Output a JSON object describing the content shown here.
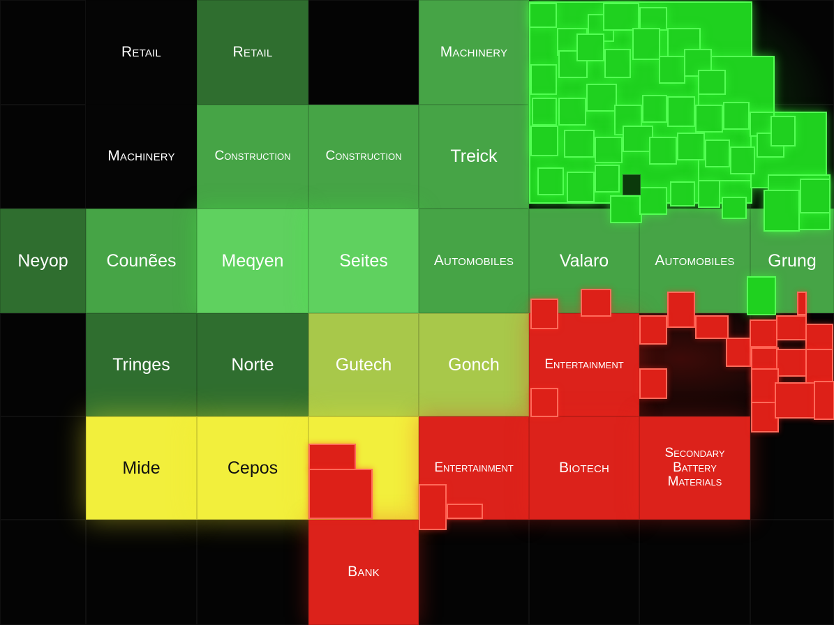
{
  "chart_data": {
    "type": "heatmap",
    "title": "",
    "columns": 8,
    "rows": 6,
    "colors": {
      "dark_green": "#2f6e2f",
      "mid_green": "#46a446",
      "light_green": "#5fd15f",
      "lime": "#a8c84a",
      "yellow": "#f2ef3c",
      "red": "#dc221b",
      "bright_green": "#2ee82e",
      "black": "#050505"
    },
    "cells": [
      {
        "label": "Retail",
        "col": 1,
        "row": 0,
        "color": "black",
        "case": "caps",
        "text_color": "#ffffff"
      },
      {
        "label": "Retail",
        "col": 2,
        "row": 0,
        "color": "dark_green",
        "case": "caps",
        "text_color": "#ffffff"
      },
      {
        "label": "Machinery",
        "col": 4,
        "row": 0,
        "color": "mid_green",
        "case": "caps",
        "text_color": "#ffffff"
      },
      {
        "label": "Machinery",
        "col": 1,
        "row": 1,
        "color": "black",
        "case": "caps",
        "text_color": "#ffffff"
      },
      {
        "label": "Construction",
        "col": 2,
        "row": 1,
        "color": "mid_green",
        "case": "caps",
        "text_color": "#ffffff"
      },
      {
        "label": "Construction",
        "col": 3,
        "row": 1,
        "color": "mid_green",
        "case": "caps",
        "text_color": "#ffffff"
      },
      {
        "label": "Treick",
        "col": 4,
        "row": 1,
        "color": "mid_green",
        "case": "word",
        "text_color": "#ffffff"
      },
      {
        "label": "Neyop",
        "col": 0,
        "row": 2,
        "color": "dark_green",
        "case": "word",
        "text_color": "#ffffff"
      },
      {
        "label": "Counẽes",
        "col": 1,
        "row": 2,
        "color": "mid_green",
        "case": "word",
        "text_color": "#ffffff"
      },
      {
        "label": "Meqyen",
        "col": 2,
        "row": 2,
        "color": "light_green",
        "case": "word",
        "text_color": "#ffffff"
      },
      {
        "label": "Seites",
        "col": 3,
        "row": 2,
        "color": "light_green",
        "case": "word",
        "text_color": "#ffffff"
      },
      {
        "label": "Automobiles",
        "col": 4,
        "row": 2,
        "color": "mid_green",
        "case": "caps",
        "text_color": "#ffffff"
      },
      {
        "label": "Valaro",
        "col": 5,
        "row": 2,
        "color": "mid_green",
        "case": "word",
        "text_color": "#ffffff"
      },
      {
        "label": "Automobiles",
        "col": 6,
        "row": 2,
        "color": "mid_green",
        "case": "caps",
        "text_color": "#ffffff"
      },
      {
        "label": "Grung",
        "col": 7,
        "row": 2,
        "color": "mid_green",
        "case": "word",
        "text_color": "#ffffff"
      },
      {
        "label": "Tringes",
        "col": 1,
        "row": 3,
        "color": "dark_green",
        "case": "word",
        "text_color": "#ffffff"
      },
      {
        "label": "Norte",
        "col": 2,
        "row": 3,
        "color": "dark_green",
        "case": "word",
        "text_color": "#ffffff"
      },
      {
        "label": "Gutech",
        "col": 3,
        "row": 3,
        "color": "lime",
        "case": "word",
        "text_color": "#ffffff"
      },
      {
        "label": "Gonch",
        "col": 4,
        "row": 3,
        "color": "lime",
        "case": "word",
        "text_color": "#ffffff"
      },
      {
        "label": "Entertainment",
        "col": 5,
        "row": 3,
        "color": "red",
        "case": "caps",
        "text_color": "#ffffff"
      },
      {
        "label": "Mide",
        "col": 1,
        "row": 4,
        "color": "yellow",
        "case": "word",
        "text_color": "#111111"
      },
      {
        "label": "Cepos",
        "col": 2,
        "row": 4,
        "color": "yellow",
        "case": "word",
        "text_color": "#111111"
      },
      {
        "label": "",
        "col": 3,
        "row": 4,
        "color": "yellow",
        "case": "word",
        "text_color": "#111111"
      },
      {
        "label": "Entertainment",
        "col": 4,
        "row": 4,
        "color": "red",
        "case": "caps",
        "text_color": "#ffffff"
      },
      {
        "label": "Biotech",
        "col": 5,
        "row": 4,
        "color": "red",
        "case": "caps",
        "text_color": "#ffffff"
      },
      {
        "label": "Secondary\nBattery\nMaterials",
        "col": 6,
        "row": 4,
        "color": "red",
        "case": "caps",
        "text_color": "#ffffff"
      },
      {
        "label": "Bank",
        "col": 3,
        "row": 5,
        "color": "red",
        "case": "caps",
        "text_color": "#ffffff"
      }
    ]
  }
}
